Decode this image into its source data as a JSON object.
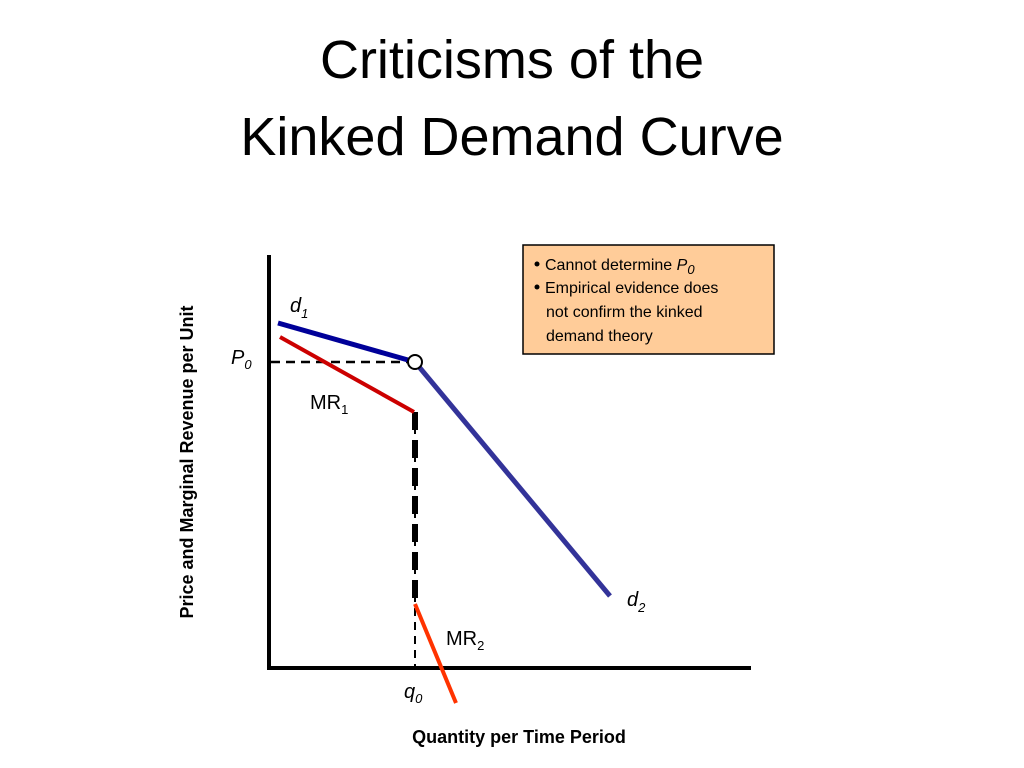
{
  "title": {
    "line1": "Criticisms of the",
    "line2": "Kinked Demand Curve"
  },
  "axes": {
    "y_label": "Price and Marginal Revenue per Unit",
    "x_label": "Quantity per Time Period"
  },
  "labels": {
    "d1": {
      "base": "d",
      "sub": "1"
    },
    "d2": {
      "base": "d",
      "sub": "2"
    },
    "mr1": {
      "base": "MR",
      "sub": "1"
    },
    "mr2": {
      "base": "MR",
      "sub": "2"
    },
    "p0": {
      "base": "P",
      "sub": "0"
    },
    "q0": {
      "base": "q",
      "sub": "0"
    }
  },
  "note": {
    "item1": {
      "text": "Cannot determine ",
      "italic": "P",
      "sub": "0"
    },
    "item2": [
      "Empirical evidence does",
      "not confirm the kinked",
      "demand theory"
    ]
  }
}
